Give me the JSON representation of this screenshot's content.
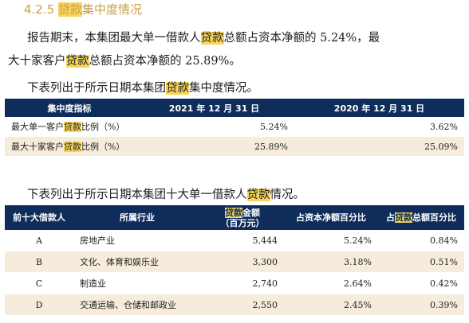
{
  "section": {
    "number": "4.2.5",
    "title_hl": "贷款",
    "title_rest": "集中度情况"
  },
  "para1": {
    "a": "报告期末，本集团最大单一借款人",
    "hl": "贷款",
    "b": "总额占资本净额的 5.24%，最"
  },
  "para2": {
    "a": "大十家客户",
    "hl": "贷款",
    "b": "总额占资本净额的 25.89%。"
  },
  "para3": {
    "a": "下表列出于所示日期本集团",
    "hl": "贷款",
    "b": "集中度情况。"
  },
  "table1": {
    "headers": [
      "集中度指标",
      "2021 年 12 月 31 日",
      "2020 年 12 月 31 日"
    ],
    "rows": [
      {
        "label_a": "最大单一客户",
        "label_hl": "贷款",
        "label_b": "比例（%）",
        "v2021": "5.24%",
        "v2020": "3.62%"
      },
      {
        "label_a": "最大十家客户",
        "label_hl": "贷款",
        "label_b": "比例（%）",
        "v2021": "25.89%",
        "v2020": "25.09%"
      }
    ]
  },
  "para4": {
    "a": "下表列出于所示日期本集团十大单一借款人",
    "hl": "贷款",
    "b": "情况。"
  },
  "table2": {
    "headers": {
      "borrower": "前十大借款人",
      "industry": "所属行业",
      "amount_hl": "贷款",
      "amount_a": "金额",
      "amount_b": "（百万元）",
      "ratio_net": "占资本净额百分比",
      "ratio_loan_a": "占",
      "ratio_loan_hl": "贷款",
      "ratio_loan_b": "总额百分比"
    },
    "rows": [
      {
        "borrower": "A",
        "industry": "房地产业",
        "amount": "5,444",
        "ratio_net": "5.24%",
        "ratio_loan": "0.84%"
      },
      {
        "borrower": "B",
        "industry": "文化、体育和娱乐业",
        "amount": "3,300",
        "ratio_net": "3.18%",
        "ratio_loan": "0.51%"
      },
      {
        "borrower": "C",
        "industry": "制造业",
        "amount": "2,740",
        "ratio_net": "2.64%",
        "ratio_loan": "0.42%"
      },
      {
        "borrower": "D",
        "industry": "交通运输、仓储和邮政业",
        "amount": "2,550",
        "ratio_net": "2.45%",
        "ratio_loan": "0.39%"
      }
    ]
  }
}
